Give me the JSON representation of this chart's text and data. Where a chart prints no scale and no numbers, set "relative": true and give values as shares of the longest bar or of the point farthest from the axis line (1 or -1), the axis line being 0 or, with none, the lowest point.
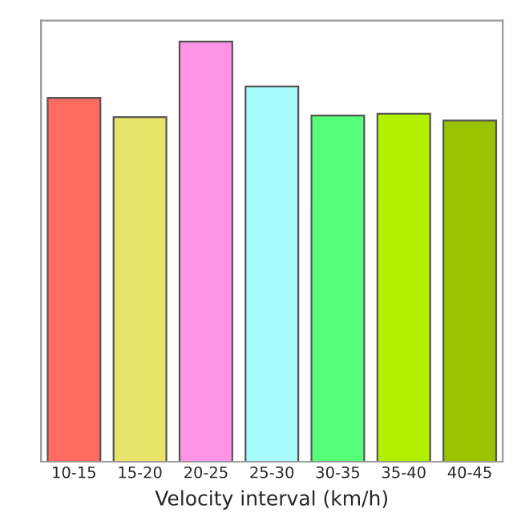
{
  "chart_data": {
    "type": "bar",
    "relative": true,
    "xlabel": "Velocity interval (km/h)",
    "categories": [
      "10-15",
      "15-20",
      "20-25",
      "25-30",
      "30-35",
      "35-40",
      "40-45"
    ],
    "values": [
      0.866,
      0.82,
      1,
      0.893,
      0.824,
      0.828,
      0.812
    ],
    "colors": [
      "#ff6b5e",
      "#e8e36a",
      "#ff94e6",
      "#a8fbfb",
      "#55ff77",
      "#b2f000",
      "#9bc400"
    ]
  }
}
